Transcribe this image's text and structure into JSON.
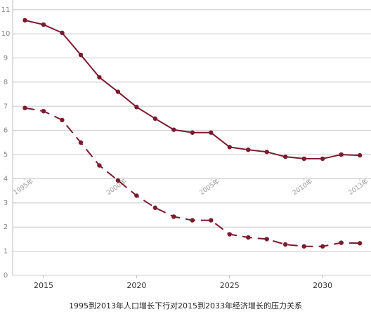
{
  "chart_data": {
    "type": "line",
    "title": "1995到2013年人口增长下行对2015到2033年经济增长的压力关系",
    "xlim": [
      2013.34,
      2032.6
    ],
    "xticks": [
      2015,
      2020,
      2025,
      2030
    ],
    "x2lim": [
      1994.34,
      2013.6
    ],
    "x2ticks": [
      {
        "value": 1995,
        "label": "1995年"
      },
      {
        "value": 2000,
        "label": "2000年"
      },
      {
        "value": 2005,
        "label": "2005年"
      },
      {
        "value": 2010,
        "label": "2010年"
      },
      {
        "value": 2013,
        "label": "2013年"
      }
    ],
    "ylim": [
      0,
      11.4
    ],
    "yticks": [
      0,
      1,
      2,
      3,
      4,
      5,
      6,
      7,
      8,
      9,
      10,
      11
    ],
    "grid": true,
    "series": [
      {
        "color": "#7b1a2e",
        "dashed": false,
        "axis": "x2",
        "x": [
          1995,
          1996,
          1997,
          1998,
          1999,
          2000,
          2001,
          2002,
          2003,
          2004,
          2005,
          2006,
          2007,
          2008,
          2009,
          2010,
          2011,
          2012,
          2013
        ],
        "values": [
          10.56,
          10.38,
          10.04,
          9.13,
          8.2,
          7.6,
          6.97,
          6.49,
          6.03,
          5.91,
          5.91,
          5.31,
          5.2,
          5.11,
          4.91,
          4.83,
          4.83,
          5.0,
          4.97
        ]
      },
      {
        "color": "#7b1a2e",
        "dashed": true,
        "x": [
          2014,
          2015,
          2016,
          2017,
          2018,
          2019,
          2020,
          2021,
          2022,
          2023,
          2024,
          2025,
          2026,
          2027,
          2028,
          2029,
          2030,
          2031,
          2032
        ],
        "values": [
          6.93,
          6.8,
          6.43,
          5.5,
          4.55,
          3.93,
          3.3,
          2.8,
          2.43,
          2.28,
          2.28,
          1.7,
          1.57,
          1.5,
          1.28,
          1.2,
          1.2,
          1.35,
          1.33
        ]
      }
    ]
  }
}
